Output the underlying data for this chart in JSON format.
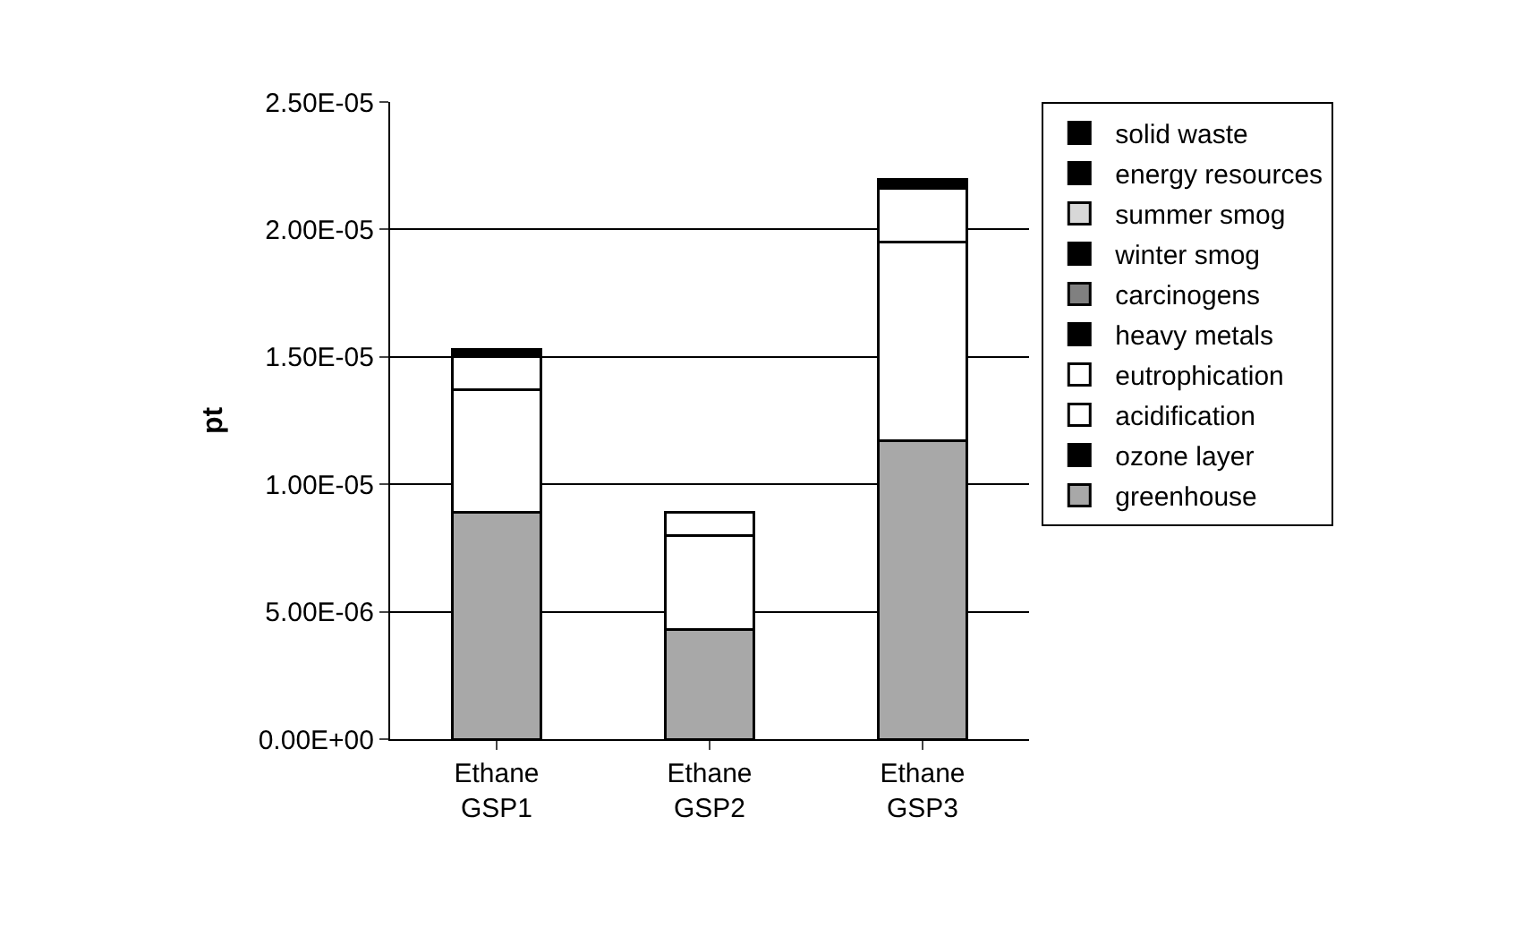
{
  "chart_data": {
    "type": "bar",
    "stacked": true,
    "ylabel": "pt",
    "categories": [
      "Ethane GSP1",
      "Ethane GSP2",
      "Ethane GSP3"
    ],
    "series": [
      {
        "name": "greenhouse",
        "color": "#a8a8a8",
        "values": [
          8.9e-06,
          4.3e-06,
          1.17e-05
        ]
      },
      {
        "name": "ozone layer",
        "color": "#000000",
        "values": [
          0,
          0,
          0
        ]
      },
      {
        "name": "acidification",
        "color": "#ffffff",
        "values": [
          4.8e-06,
          3.7e-06,
          7.8e-06
        ]
      },
      {
        "name": "eutrophication",
        "color": "#ffffff",
        "values": [
          1.3e-06,
          9e-07,
          2.1e-06
        ]
      },
      {
        "name": "heavy metals",
        "color": "#000000",
        "values": [
          0,
          0,
          0
        ]
      },
      {
        "name": "carcinogens",
        "color": "#808080",
        "values": [
          0,
          0,
          0
        ]
      },
      {
        "name": "winter smog",
        "color": "#000000",
        "values": [
          0,
          0,
          0
        ]
      },
      {
        "name": "summer smog",
        "color": "#d8d8d8",
        "values": [
          0,
          0,
          0
        ]
      },
      {
        "name": "energy resources",
        "color": "#000000",
        "values": [
          3e-07,
          0,
          3.5e-07
        ]
      },
      {
        "name": "solid waste",
        "color": "#000000",
        "values": [
          0,
          0,
          0
        ]
      }
    ],
    "ylim": [
      0,
      2.5e-05
    ],
    "yticks": [
      {
        "value": 0,
        "label": "0.00E+00"
      },
      {
        "value": 5e-06,
        "label": "5.00E-06"
      },
      {
        "value": 1e-05,
        "label": "1.00E-05"
      },
      {
        "value": 1.5e-05,
        "label": "1.50E-05"
      },
      {
        "value": 2e-05,
        "label": "2.00E-05"
      },
      {
        "value": 2.5e-05,
        "label": "2.50E-05"
      }
    ],
    "grid": "y",
    "legend": "right"
  }
}
